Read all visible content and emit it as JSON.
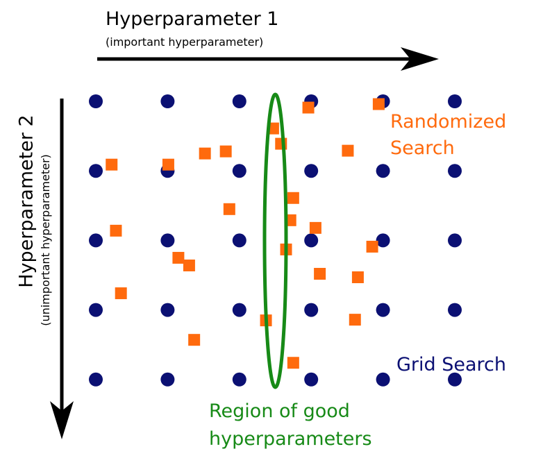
{
  "axis_x": {
    "title": "Hyperparameter 1",
    "subtitle": "(important hyperparameter)"
  },
  "axis_y": {
    "title": "Hyperparameter 2",
    "subtitle": "(unimportant hyperparameter)"
  },
  "labels": {
    "randomized_line1": "Randomized",
    "randomized_line2": "Search",
    "grid": "Grid Search",
    "region_line1": "Region of good",
    "region_line2": "hyperparameters"
  },
  "colors": {
    "grid_point": "#0b1073",
    "random_point": "#ff6a0d",
    "region": "#178a17",
    "text_grid": "#0b1073",
    "text_random": "#ff6a0d",
    "text_region": "#178a17"
  },
  "grid_search": {
    "columns": 6,
    "rows": 5
  },
  "random_search": {
    "points": [
      [
        2.96,
        0.09
      ],
      [
        3.94,
        0.04
      ],
      [
        2.47,
        0.39
      ],
      [
        2.58,
        0.61
      ],
      [
        3.51,
        0.71
      ],
      [
        0.22,
        0.91
      ],
      [
        1.01,
        0.91
      ],
      [
        1.52,
        0.75
      ],
      [
        1.81,
        0.72
      ],
      [
        2.75,
        1.39
      ],
      [
        1.86,
        1.55
      ],
      [
        2.71,
        1.71
      ],
      [
        3.06,
        1.82
      ],
      [
        0.28,
        1.86
      ],
      [
        2.65,
        2.13
      ],
      [
        1.15,
        2.25
      ],
      [
        1.3,
        2.36
      ],
      [
        3.85,
        2.09
      ],
      [
        3.12,
        2.48
      ],
      [
        3.65,
        2.53
      ],
      [
        0.35,
        2.76
      ],
      [
        2.37,
        3.15
      ],
      [
        3.61,
        3.14
      ],
      [
        1.37,
        3.43
      ],
      [
        2.75,
        3.76
      ]
    ]
  },
  "good_region": {
    "x_center": 2.5,
    "x_halfwidth": 0.15
  }
}
